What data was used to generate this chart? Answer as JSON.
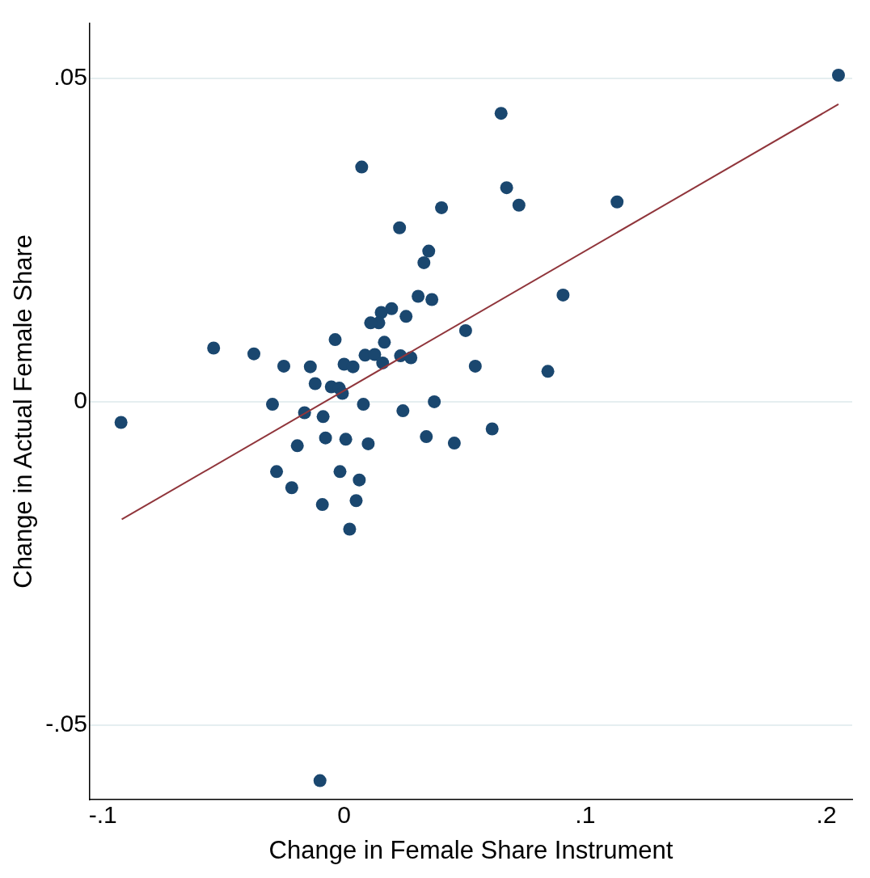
{
  "chart_data": {
    "type": "scatter",
    "xlabel": "Change in Female Share Instrument",
    "ylabel": "Change in Actual Female Share",
    "xlim": [
      -0.1055,
      0.2107
    ],
    "ylim": [
      -0.0615,
      0.0585
    ],
    "xticks": [
      {
        "value": -0.1,
        "label": "-.1"
      },
      0,
      {
        "value": 0.1,
        "label": ".1"
      },
      {
        "value": 0.2,
        "label": ".2"
      }
    ],
    "yticks": [
      {
        "value": -0.05,
        "label": "-.05"
      },
      0,
      {
        "value": 0.05,
        "label": ".05"
      }
    ],
    "grid": "y",
    "legend": false,
    "marker": "circle",
    "series": [
      {
        "type": "scatter",
        "color": "#1a476f",
        "x": [
          0.205,
          0.0651,
          0.0073,
          0.0674,
          0.0725,
          0.1132,
          0.0404,
          0.023,
          0.0351,
          0.0331,
          0.0307,
          0.0364,
          0.0908,
          0.0197,
          0.0154,
          0.0144,
          0.011,
          0.0257,
          0.0504,
          -0.0037,
          0.0167,
          -0.0541,
          -0.0374,
          0.0087,
          0.0127,
          0.0234,
          0.0277,
          0.016,
          0.0,
          0.0037,
          -0.014,
          -0.025,
          0.0544,
          0.0845,
          -0.012,
          -0.0053,
          -0.002,
          -0.0007,
          -0.0297,
          0.008,
          0.0374,
          -0.0164,
          -0.0925,
          0.0244,
          -0.0087,
          0.0614,
          -0.0077,
          0.0007,
          0.0341,
          -0.0194,
          0.01,
          0.0457,
          -0.028,
          -0.0017,
          0.0063,
          -0.0217,
          0.005,
          -0.009,
          0.0023,
          -0.01
        ],
        "values": [
          0.0505,
          0.0446,
          0.0363,
          0.0331,
          0.0304,
          0.0309,
          0.03,
          0.0269,
          0.0233,
          0.0215,
          0.0163,
          0.0158,
          0.0165,
          0.0144,
          0.0138,
          0.0122,
          0.0122,
          0.0132,
          0.011,
          0.0096,
          0.0092,
          0.0083,
          0.0074,
          0.0072,
          0.0073,
          0.0071,
          0.0068,
          0.006,
          0.0058,
          0.0054,
          0.0054,
          0.0055,
          0.0055,
          0.0047,
          0.0028,
          0.0023,
          0.0021,
          0.0013,
          -0.0004,
          -0.0004,
          0.0,
          -0.0017,
          -0.0032,
          -0.0014,
          -0.0023,
          -0.0042,
          -0.0056,
          -0.0058,
          -0.0054,
          -0.0068,
          -0.0065,
          -0.0064,
          -0.0108,
          -0.0108,
          -0.0121,
          -0.0133,
          -0.0153,
          -0.0159,
          -0.0197,
          -0.0586
        ]
      },
      {
        "type": "line",
        "color": "#90353b",
        "x": [
          -0.0922,
          0.205
        ],
        "values": [
          -0.0182,
          0.046
        ],
        "marker": "none",
        "line_style": "solid"
      }
    ]
  }
}
